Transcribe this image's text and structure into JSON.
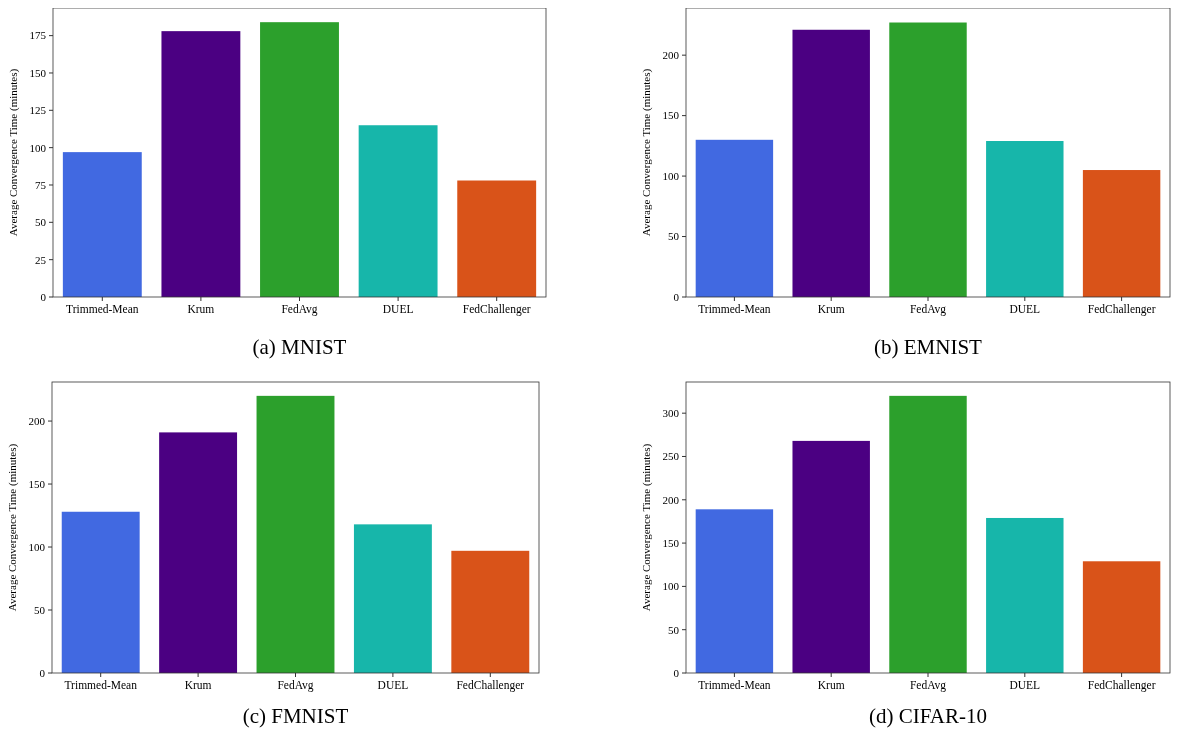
{
  "chart_data": [
    {
      "type": "bar",
      "title": "(a) MNIST",
      "ylabel": "Average Convergence Time (minutes)",
      "categories": [
        "Trimmed-Mean",
        "Krum",
        "FedAvg",
        "DUEL",
        "FedChallenger"
      ],
      "values": [
        97,
        178,
        184,
        115,
        78
      ],
      "colors": [
        "#4169e1",
        "#4b0082",
        "#2ca02c",
        "#17b6aa",
        "#d95319"
      ],
      "ylim": [
        0,
        193.5
      ],
      "yticks": [
        0,
        25,
        50,
        75,
        100,
        125,
        150,
        175
      ],
      "grid": false
    },
    {
      "type": "bar",
      "title": "(b) EMNIST",
      "ylabel": "Average Convergence Time (minutes)",
      "categories": [
        "Trimmed-Mean",
        "Krum",
        "FedAvg",
        "DUEL",
        "FedChallenger"
      ],
      "values": [
        130,
        221,
        227,
        129,
        105
      ],
      "colors": [
        "#4169e1",
        "#4b0082",
        "#2ca02c",
        "#17b6aa",
        "#d95319"
      ],
      "ylim": [
        0,
        239
      ],
      "yticks": [
        0,
        50,
        100,
        150,
        200
      ],
      "grid": false
    },
    {
      "type": "bar",
      "title": "(c) FMNIST",
      "ylabel": "Average Convergence Time (minutes)",
      "categories": [
        "Trimmed-Mean",
        "Krum",
        "FedAvg",
        "DUEL",
        "FedChallenger"
      ],
      "values": [
        128,
        191,
        220,
        118,
        97
      ],
      "colors": [
        "#4169e1",
        "#4b0082",
        "#2ca02c",
        "#17b6aa",
        "#d95319"
      ],
      "ylim": [
        0,
        231
      ],
      "yticks": [
        0,
        50,
        100,
        150,
        200
      ],
      "grid": false
    },
    {
      "type": "bar",
      "title": "(d) CIFAR-10",
      "ylabel": "Average Convergence Time (minutes)",
      "categories": [
        "Trimmed-Mean",
        "Krum",
        "FedAvg",
        "DUEL",
        "FedChallenger"
      ],
      "values": [
        189,
        268,
        320,
        179,
        129
      ],
      "colors": [
        "#4169e1",
        "#4b0082",
        "#2ca02c",
        "#17b6aa",
        "#d95319"
      ],
      "ylim": [
        0,
        336
      ],
      "yticks": [
        0,
        50,
        100,
        150,
        200,
        250,
        300
      ],
      "grid": false
    }
  ]
}
